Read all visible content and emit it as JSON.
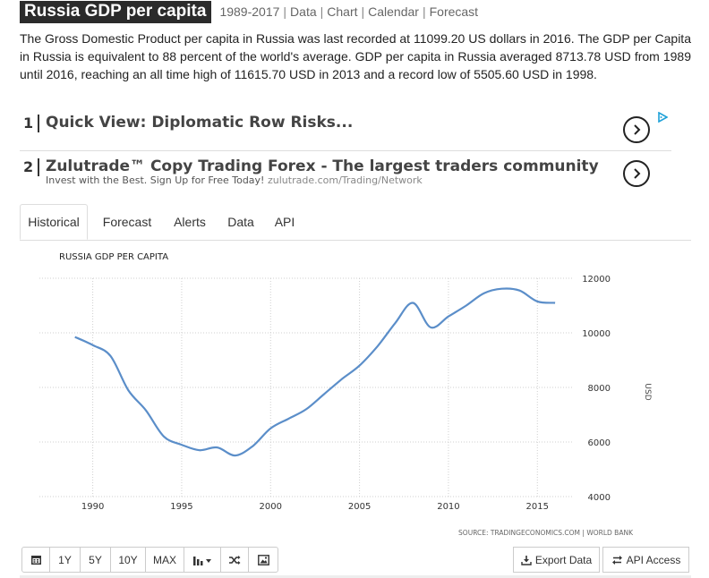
{
  "header": {
    "title": "Russia GDP per capita",
    "nav": [
      "1989-2017",
      "Data",
      "Chart",
      "Calendar",
      "Forecast"
    ]
  },
  "description": "The Gross Domestic Product per capita in Russia was last recorded at 11099.20 US dollars in 2016. The GDP per Capita in Russia is equivalent to 88 percent of the world's average. GDP per capita in Russia averaged 8713.78 USD from 1989 until 2016, reaching an all time high of 11615.70 USD in 2013 and a record low of 5505.60 USD in 1998.",
  "ads": [
    {
      "num": "1",
      "headline": "Quick View: Diplomatic Row Risks...",
      "sub": "",
      "url": ""
    },
    {
      "num": "2",
      "headline": "Zulutrade™ Copy Trading Forex - The largest traders community",
      "sub": "Invest with the Best. Sign Up for Free Today!",
      "url": "zulutrade.com/Trading/Network"
    }
  ],
  "tabs": [
    "Historical",
    "Forecast",
    "Alerts",
    "Data",
    "API"
  ],
  "toolbar": {
    "buttons": [
      "",
      "1Y",
      "5Y",
      "10Y",
      "MAX",
      "",
      "",
      ""
    ],
    "export_label": "Export Data",
    "api_label": "API Access"
  },
  "colors": {
    "line": "#5b8ec9",
    "grid": "#cfcfcf",
    "accent": "#2b2b2b"
  },
  "chart_data": {
    "type": "line",
    "title": "RUSSIA GDP PER CAPITA",
    "ylabel": "USD",
    "source": "SOURCE: TRADINGECONOMICS.COM | WORLD BANK",
    "xlim": [
      1987,
      2017
    ],
    "ylim": [
      4000,
      12000
    ],
    "xticks": [
      1990,
      1995,
      2000,
      2005,
      2010,
      2015
    ],
    "yticks": [
      4000,
      6000,
      8000,
      10000,
      12000
    ],
    "grid": true,
    "series": [
      {
        "x": [
          1989,
          1990,
          1991,
          1992,
          1993,
          1994,
          1995,
          1996,
          1997,
          1998,
          1999,
          2000,
          2001,
          2002,
          2003,
          2004,
          2005,
          2006,
          2007,
          2008,
          2009,
          2010,
          2011,
          2012,
          2013,
          2014,
          2015,
          2016
        ],
        "y": [
          9850,
          9550,
          9150,
          7900,
          7150,
          6200,
          5900,
          5700,
          5800,
          5505.6,
          5850,
          6500,
          6850,
          7200,
          7750,
          8300,
          8800,
          9500,
          10350,
          11100,
          10200,
          10600,
          11000,
          11450,
          11615.7,
          11550,
          11150,
          11099.2
        ]
      }
    ]
  }
}
